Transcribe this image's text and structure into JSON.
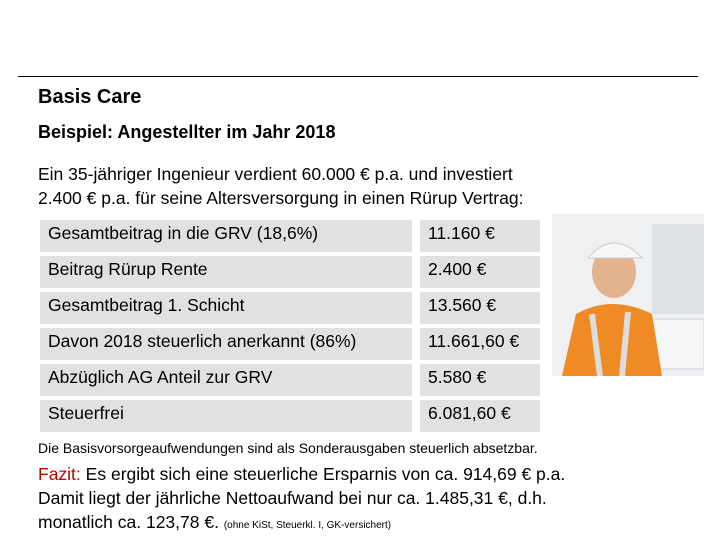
{
  "title": "Basis Care",
  "subtitle": "Beispiel: Angestellter im Jahr 2018",
  "intro": [
    "Ein 35-jähriger Ingenieur verdient 60.000 € p.a. und investiert",
    "2.400 € p.a. für seine Altersversorgung in einen Rürup Vertrag:"
  ],
  "table": {
    "rows": [
      [
        "Gesamtbeitrag in die GRV (18,6%)",
        "11.160 €"
      ],
      [
        "Beitrag Rürup Rente",
        "2.400 €"
      ],
      [
        "Gesamtbeitrag 1. Schicht",
        "13.560 €"
      ],
      [
        "Davon 2018 steuerlich anerkannt  (86%)",
        "11.661,60 €"
      ],
      [
        "Abzüglich AG Anteil zur GRV",
        "5.580 €"
      ],
      [
        "Steuerfrei",
        "6.081,60 €"
      ]
    ]
  },
  "note": "Die Basisvorsorgeaufwendungen sind als Sonderausgaben steuerlich absetzbar.",
  "conclusion": {
    "label": "Fazit:",
    "lines": [
      "Es ergibt sich eine steuerliche Ersparnis von ca. 914,69 € p.a.",
      "Damit liegt der jährliche Nettoaufwand bei nur ca. 1.485,31 €, d.h.",
      "monatlich ca. 123,78 €."
    ],
    "footnote": "(ohne KiSt, Steuerkl. I, GK-versichert)"
  }
}
